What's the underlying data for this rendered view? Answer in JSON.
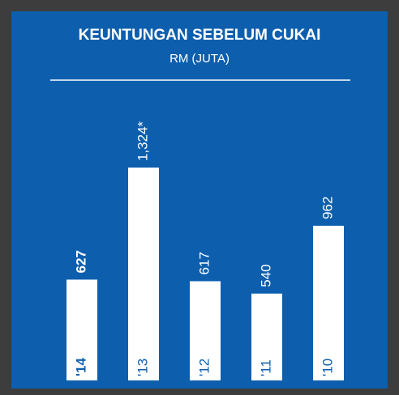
{
  "chart_data": {
    "type": "bar",
    "title": "KEUNTUNGAN SEBELUM CUKAI",
    "subtitle": "RM (JUTA)",
    "categories": [
      "'14",
      "'13",
      "'12",
      "'11",
      "'10"
    ],
    "values": [
      627,
      1324,
      617,
      540,
      962
    ],
    "value_labels": [
      "627",
      "1,324*",
      "617",
      "540",
      "962"
    ],
    "color": "#ffffff",
    "background": "#0d5fae"
  }
}
